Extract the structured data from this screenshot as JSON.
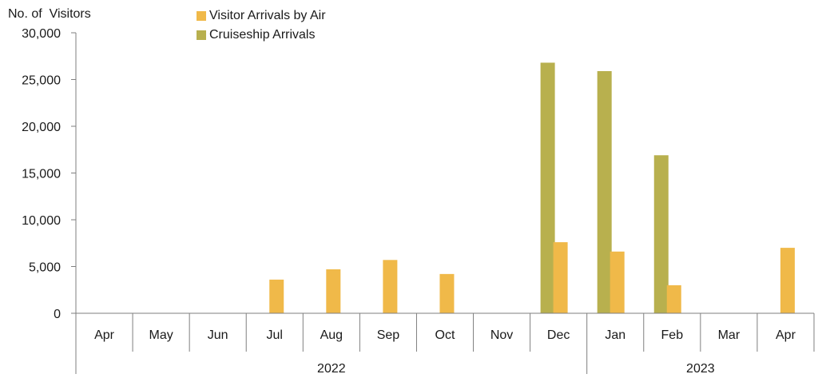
{
  "chart_data": {
    "type": "bar",
    "ylabel": "No. of  Visitors",
    "ylim": [
      0,
      30000
    ],
    "yticks": [
      0,
      5000,
      10000,
      15000,
      20000,
      25000,
      30000
    ],
    "ytick_labels": [
      "0",
      "5,000",
      "10,000",
      "15,000",
      "20,000",
      "25,000",
      "30,000"
    ],
    "categories": [
      "Apr",
      "May",
      "Jun",
      "Jul",
      "Aug",
      "Sep",
      "Oct",
      "Nov",
      "Dec",
      "Jan",
      "Feb",
      "Mar",
      "Apr"
    ],
    "year_groups": [
      {
        "label": "2022",
        "start": 0,
        "end": 8
      },
      {
        "label": "2023",
        "start": 9,
        "end": 12
      }
    ],
    "series": [
      {
        "name": "Cruiseship Arrivals",
        "color": "#b8b04e",
        "values": [
          0,
          0,
          0,
          0,
          0,
          0,
          0,
          0,
          26800,
          25900,
          16900,
          0,
          0
        ]
      },
      {
        "name": "Visitor Arrivals by Air",
        "color": "#f0b949",
        "values": [
          0,
          0,
          0,
          3600,
          4700,
          5700,
          4200,
          0,
          7600,
          6600,
          3000,
          0,
          7000
        ]
      }
    ],
    "legend_order": [
      1,
      0
    ],
    "legend_position": "top",
    "grid": false
  }
}
